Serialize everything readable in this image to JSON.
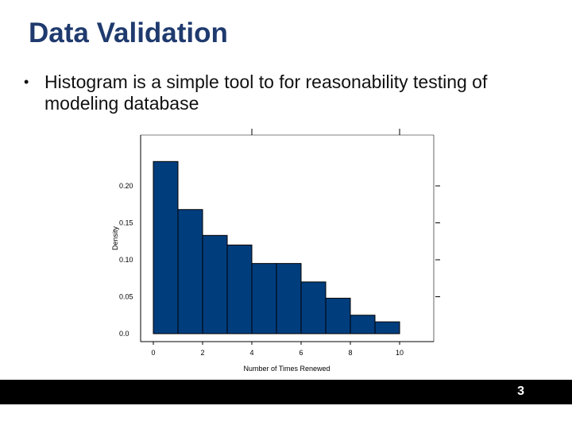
{
  "slide": {
    "title": "Data Validation",
    "bullet": "Histogram is a simple tool to for reasonability testing of modeling database",
    "page_number": "3"
  },
  "chart_data": {
    "type": "bar",
    "title": "",
    "xlabel": "Number of Times Renewed",
    "ylabel": "Density",
    "xlim": [
      -0.5,
      11.5
    ],
    "ylim": [
      0,
      0.245
    ],
    "x_ticks": [
      0,
      2,
      4,
      6,
      8,
      10
    ],
    "x_tick_labels": [
      "0",
      "2",
      "4",
      "6",
      "8",
      "10"
    ],
    "y_ticks": [
      0.0,
      0.05,
      0.1,
      0.15,
      0.2
    ],
    "y_tick_labels": [
      "0.0",
      "0.05",
      "0.10",
      "0.15",
      "0.20"
    ],
    "bin_edges": [
      0,
      1,
      2,
      3,
      4,
      5,
      6,
      7,
      8,
      9,
      10
    ],
    "values": [
      0.233,
      0.168,
      0.133,
      0.12,
      0.095,
      0.095,
      0.07,
      0.048,
      0.025,
      0.016
    ],
    "bar_color": "#003d7d",
    "grid": false
  }
}
